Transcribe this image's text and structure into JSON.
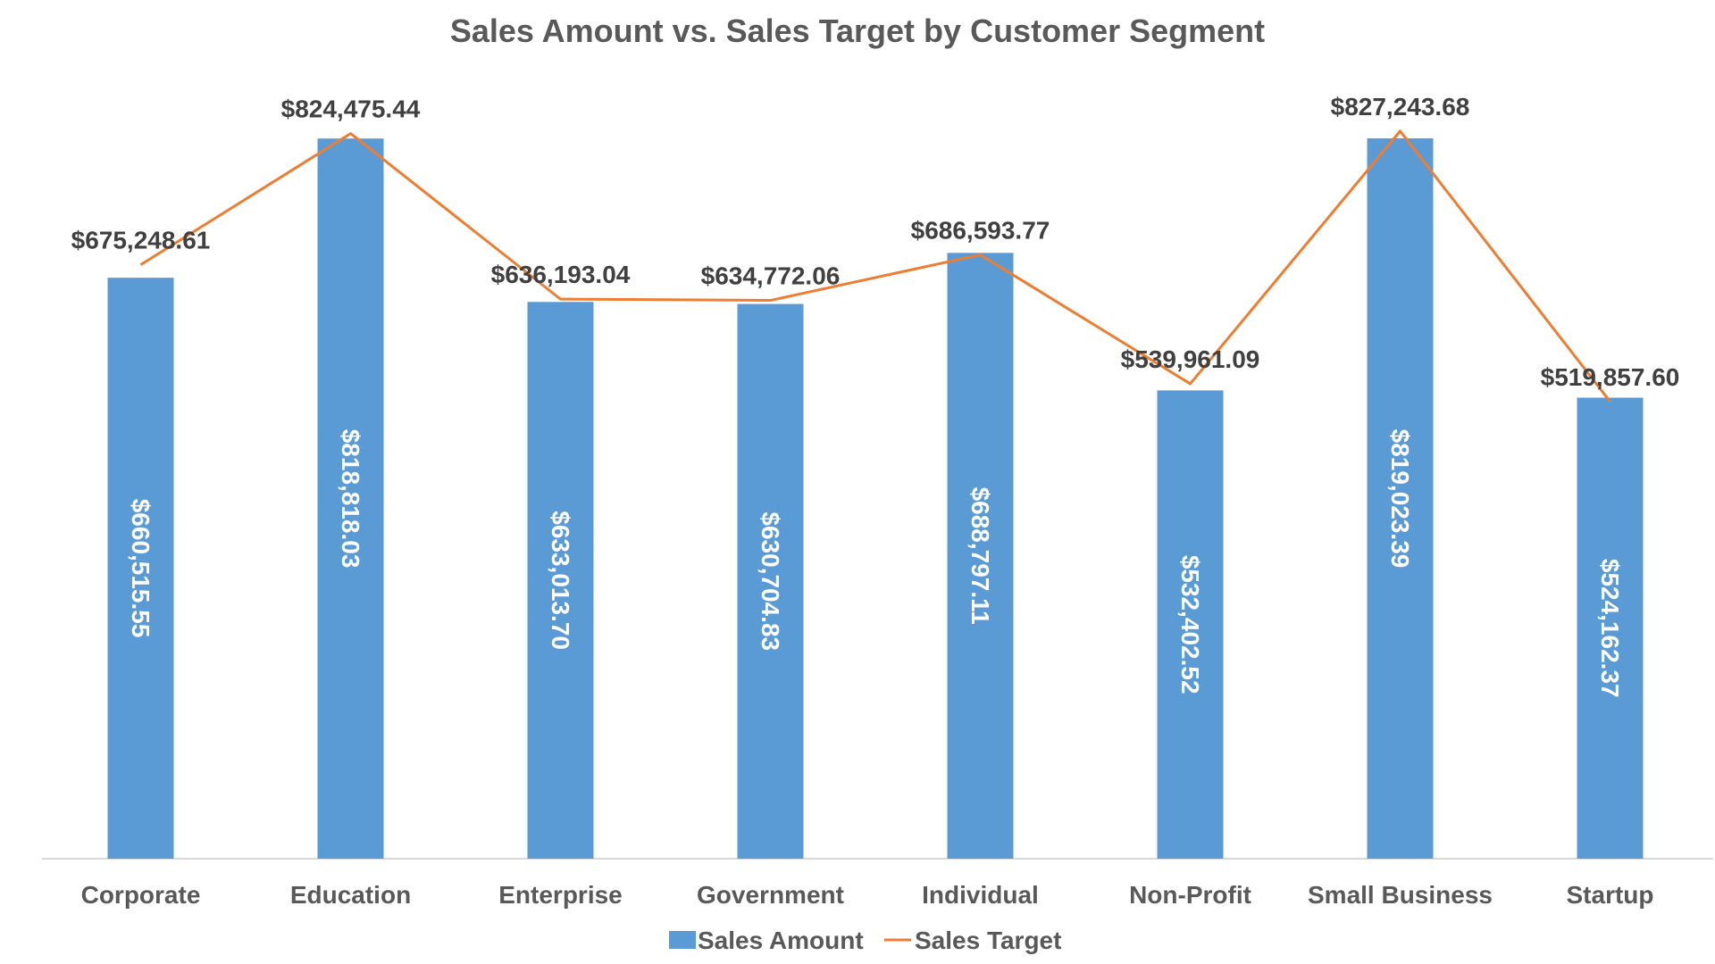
{
  "chart_data": {
    "type": "bar",
    "title": "Sales Amount vs. Sales Target by Customer Segment",
    "xlabel": "",
    "ylabel": "",
    "categories": [
      "Corporate",
      "Education",
      "Enterprise",
      "Government",
      "Individual",
      "Non-Profit",
      "Small Business",
      "Startup"
    ],
    "series": [
      {
        "name": "Sales Amount",
        "type": "bar",
        "color": "#5B9BD5",
        "values": [
          660515.55,
          818818.03,
          633013.7,
          630704.83,
          688797.11,
          532402.52,
          819023.39,
          524162.37
        ],
        "labels": [
          "$660,515.55",
          "$818,818.03",
          "$633,013.70",
          "$630,704.83",
          "$688,797.11",
          "$532,402.52",
          "$819,023.39",
          "$524,162.37"
        ]
      },
      {
        "name": "Sales Target",
        "type": "line",
        "color": "#ED7D31",
        "values": [
          675248.61,
          824475.44,
          636193.04,
          634772.06,
          686593.77,
          539961.09,
          827243.68,
          519857.6
        ],
        "labels": [
          "$675,248.61",
          "$824,475.44",
          "$636,193.04",
          "$634,772.06",
          "$686,593.77",
          "$539,961.09",
          "$827,243.68",
          "$519,857.60"
        ]
      }
    ],
    "ylim": [
      0,
      830000
    ],
    "grid": false,
    "legend_position": "bottom"
  }
}
